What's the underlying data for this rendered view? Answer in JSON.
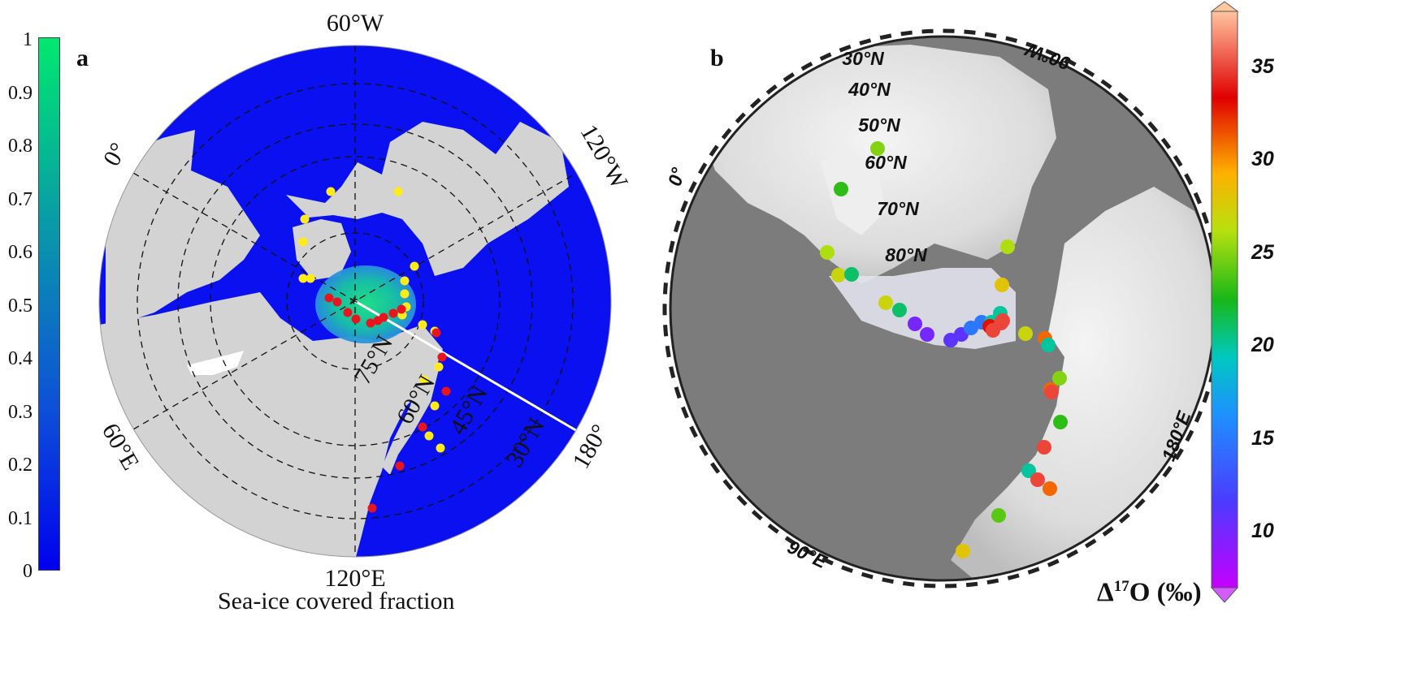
{
  "panel_a": {
    "letter": "a",
    "colorbar": {
      "ticks": [
        "1",
        "0.9",
        "0.8",
        "0.7",
        "0.6",
        "0.5",
        "0.4",
        "0.3",
        "0.2",
        "0.1",
        "0"
      ],
      "colors": [
        "#00e870",
        "#0a8fb0",
        "#0d4fd8",
        "#0000ee"
      ],
      "label": "Sea-ice covered fraction"
    },
    "longitude_labels": {
      "top": "60°W",
      "upper_left": "0°",
      "upper_right": "120°W",
      "lower_left": "60°E",
      "bottom": "120°E",
      "lower_right": "180°"
    },
    "latitude_labels": [
      "75°N",
      "60°N",
      "45°N",
      "30°N"
    ],
    "marker_colors": {
      "yellow": "#ffeb1a",
      "red": "#e8141e"
    },
    "ocean_color": "#0a10f0",
    "land_color": "#d3d3d3",
    "sea_ice_color": "#18e07a"
  },
  "panel_b": {
    "letter": "b",
    "colorbar": {
      "ticks": [
        "35",
        "30",
        "25",
        "20",
        "15",
        "10"
      ],
      "range": [
        7,
        38
      ],
      "label_prefix": "Δ",
      "label_superscript": "17",
      "label_suffix": "O (‰)"
    },
    "latitude_labels": [
      "30°N",
      "40°N",
      "50°N",
      "60°N",
      "70°N",
      "80°N"
    ],
    "longitude_labels": {
      "left": "0°",
      "top_right": "90°W",
      "right": "180°E",
      "bottom_left": "90°E"
    },
    "points_d17O": [
      23,
      25,
      26,
      27,
      21,
      27,
      21,
      10,
      10,
      11,
      11,
      15,
      15,
      20,
      20,
      28,
      26,
      33,
      35,
      35,
      35,
      27,
      31,
      31,
      20,
      25,
      35,
      23,
      35,
      20,
      35,
      31,
      24,
      28
    ]
  }
}
